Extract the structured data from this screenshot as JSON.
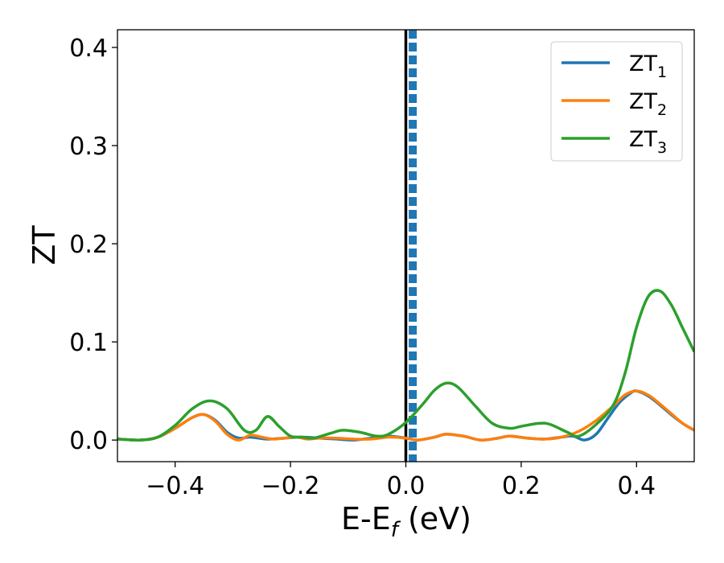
{
  "chart_data": {
    "type": "line",
    "xlabel": {
      "base": "E-E",
      "sub": "f",
      "tail": " (eV)"
    },
    "ylabel": "ZT",
    "xlim": [
      -0.5,
      0.5
    ],
    "ylim": [
      -0.022,
      0.418
    ],
    "xticks": [
      -0.4,
      -0.2,
      0.0,
      0.2,
      0.4
    ],
    "xtick_labels": [
      "−0.4",
      "−0.2",
      "0.0",
      "0.2",
      "0.4"
    ],
    "yticks": [
      0.0,
      0.1,
      0.2,
      0.3,
      0.4
    ],
    "ytick_labels": [
      "0.0",
      "0.1",
      "0.2",
      "0.3",
      "0.4"
    ],
    "grid": false,
    "legend_position": "top-right",
    "vertical_lines": [
      {
        "x": 0.0,
        "color": "#000000",
        "style": "solid"
      },
      {
        "x": 0.012,
        "color": "#1f77b4",
        "style": "dashed"
      }
    ],
    "series": [
      {
        "name": "ZT",
        "name_sub": "1",
        "color": "#1f77b4",
        "x": [
          -0.5,
          -0.46,
          -0.43,
          -0.4,
          -0.37,
          -0.35,
          -0.33,
          -0.31,
          -0.29,
          -0.27,
          -0.24,
          -0.21,
          -0.18,
          -0.15,
          -0.12,
          -0.09,
          -0.06,
          -0.03,
          0.0,
          0.02,
          0.05,
          0.07,
          0.1,
          0.13,
          0.16,
          0.18,
          0.21,
          0.24,
          0.27,
          0.29,
          0.31,
          0.33,
          0.35,
          0.37,
          0.39,
          0.4,
          0.42,
          0.44,
          0.46,
          0.48,
          0.5
        ],
        "y": [
          0.001,
          0.0,
          0.003,
          0.012,
          0.023,
          0.026,
          0.02,
          0.008,
          0.002,
          0.003,
          0.001,
          0.002,
          0.003,
          0.002,
          0.001,
          0.0,
          0.002,
          0.004,
          0.002,
          0.0,
          0.003,
          0.006,
          0.004,
          0.0,
          0.002,
          0.004,
          0.002,
          0.001,
          0.003,
          0.004,
          0.0,
          0.006,
          0.022,
          0.038,
          0.048,
          0.05,
          0.045,
          0.036,
          0.026,
          0.017,
          0.01
        ]
      },
      {
        "name": "ZT",
        "name_sub": "2",
        "color": "#ff7f0e",
        "x": [
          -0.5,
          -0.46,
          -0.43,
          -0.4,
          -0.37,
          -0.35,
          -0.33,
          -0.31,
          -0.29,
          -0.27,
          -0.25,
          -0.23,
          -0.21,
          -0.19,
          -0.17,
          -0.15,
          -0.12,
          -0.09,
          -0.06,
          -0.03,
          0.0,
          0.02,
          0.05,
          0.07,
          0.1,
          0.13,
          0.16,
          0.18,
          0.21,
          0.24,
          0.27,
          0.3,
          0.33,
          0.36,
          0.38,
          0.4,
          0.42,
          0.44,
          0.46,
          0.48,
          0.5
        ],
        "y": [
          0.001,
          0.0,
          0.003,
          0.012,
          0.023,
          0.026,
          0.019,
          0.006,
          0.0,
          0.005,
          0.003,
          0.001,
          0.002,
          0.003,
          0.001,
          0.002,
          0.002,
          0.001,
          0.001,
          0.003,
          0.002,
          0.0,
          0.003,
          0.006,
          0.004,
          0.0,
          0.002,
          0.004,
          0.002,
          0.001,
          0.003,
          0.009,
          0.02,
          0.035,
          0.046,
          0.05,
          0.046,
          0.037,
          0.027,
          0.017,
          0.01
        ]
      },
      {
        "name": "ZT",
        "name_sub": "3",
        "color": "#2ca02c",
        "x": [
          -0.5,
          -0.46,
          -0.43,
          -0.4,
          -0.37,
          -0.34,
          -0.31,
          -0.28,
          -0.26,
          -0.24,
          -0.22,
          -0.2,
          -0.18,
          -0.16,
          -0.13,
          -0.11,
          -0.08,
          -0.05,
          -0.03,
          0.0,
          0.03,
          0.05,
          0.07,
          0.09,
          0.12,
          0.15,
          0.18,
          0.2,
          0.23,
          0.25,
          0.28,
          0.3,
          0.33,
          0.36,
          0.38,
          0.4,
          0.42,
          0.44,
          0.46,
          0.48,
          0.5
        ],
        "y": [
          0.001,
          0.0,
          0.003,
          0.015,
          0.032,
          0.04,
          0.032,
          0.01,
          0.01,
          0.024,
          0.014,
          0.004,
          0.003,
          0.002,
          0.007,
          0.01,
          0.008,
          0.004,
          0.006,
          0.018,
          0.037,
          0.051,
          0.058,
          0.054,
          0.035,
          0.017,
          0.012,
          0.014,
          0.017,
          0.016,
          0.008,
          0.004,
          0.016,
          0.036,
          0.068,
          0.115,
          0.146,
          0.152,
          0.138,
          0.114,
          0.09
        ]
      }
    ]
  }
}
